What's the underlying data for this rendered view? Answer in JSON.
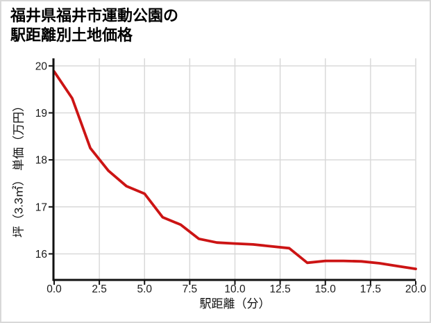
{
  "header": {
    "title_line1": "福井県福井市運動公園の",
    "title_line2": "駅距離別土地価格"
  },
  "colors": {
    "line": "#cc1414",
    "grid": "#d9d9d9",
    "axis": "#111111",
    "tick_text": "#1a1a1a",
    "page_border": "#d8d8d8",
    "background": "#ffffff"
  },
  "chart_data": {
    "type": "line",
    "title": "福井県福井市運動公園の駅距離別土地価格",
    "xlabel": "駅距離（分）",
    "ylabel": "坪（3.3㎡） 単価（万円）",
    "x": [
      0,
      1,
      2,
      3,
      4,
      5,
      6,
      7,
      8,
      9,
      10,
      11,
      12,
      13,
      14,
      15,
      16,
      17,
      18,
      19,
      20
    ],
    "y": [
      19.88,
      19.31,
      18.25,
      17.77,
      17.44,
      17.28,
      16.78,
      16.62,
      16.32,
      16.24,
      16.22,
      16.2,
      16.16,
      16.12,
      15.81,
      15.85,
      15.85,
      15.84,
      15.8,
      15.74,
      15.68
    ],
    "x_ticks": [
      0,
      2.5,
      5,
      7.5,
      10,
      12.5,
      15,
      17.5,
      20
    ],
    "x_tick_labels": [
      "0.0",
      "2.5",
      "5.0",
      "7.5",
      "10.0",
      "12.5",
      "15.0",
      "17.5",
      "20.0"
    ],
    "y_ticks": [
      16,
      17,
      18,
      19,
      20
    ],
    "y_tick_labels": [
      "16",
      "17",
      "18",
      "19",
      "20"
    ],
    "xlim": [
      0,
      20
    ],
    "ylim": [
      15.46,
      20.16
    ],
    "grid": true,
    "legend": false,
    "line_color": "#cc1414"
  }
}
